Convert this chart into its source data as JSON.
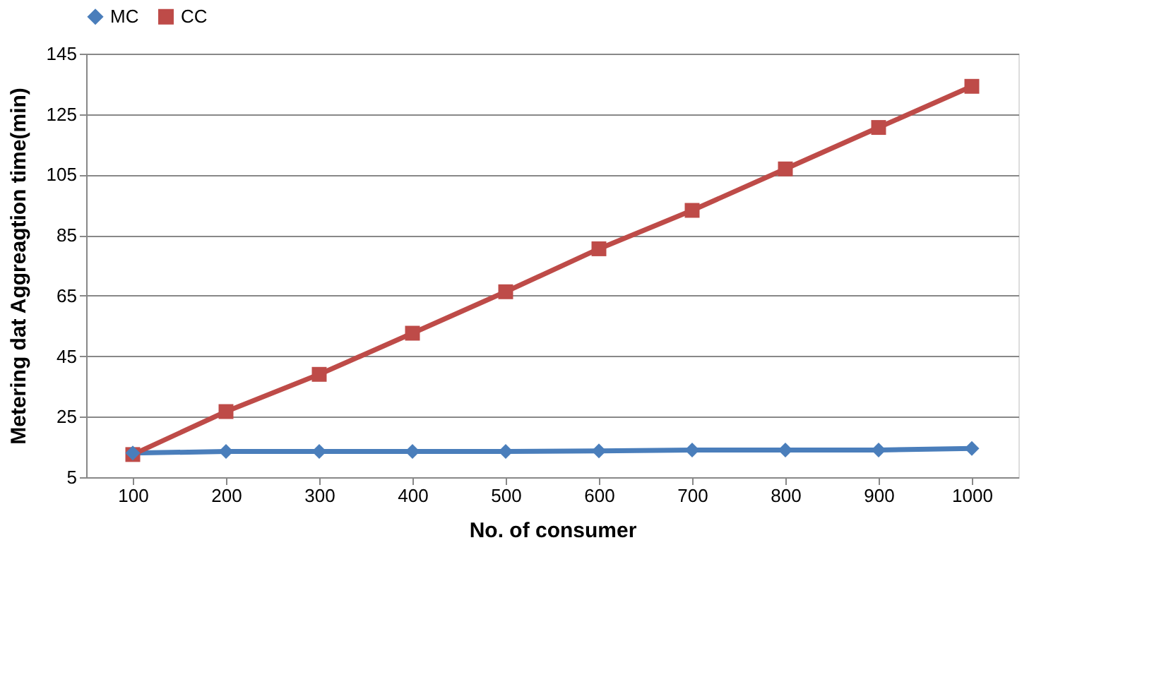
{
  "chart_data": {
    "type": "line",
    "xlabel": "No. of consumer",
    "ylabel": "Metering dat Aggreagtion time(min)",
    "categories": [
      "100",
      "200",
      "300",
      "400",
      "500",
      "600",
      "700",
      "800",
      "900",
      "1000"
    ],
    "series": [
      {
        "name": "MC",
        "color": "#4a7ebb",
        "marker": "diamond",
        "values": [
          13,
          13.5,
          13.5,
          13.5,
          13.5,
          13.7,
          14,
          14,
          14,
          14.5
        ]
      },
      {
        "name": "CC",
        "color": "#be4b48",
        "marker": "square",
        "values": [
          12.5,
          26.7,
          39,
          52.6,
          66.3,
          80.5,
          93.2,
          106.9,
          120.6,
          134.2
        ]
      }
    ],
    "ylim": [
      5,
      145
    ],
    "yticks": [
      5,
      25,
      45,
      65,
      85,
      105,
      125,
      145
    ],
    "grid": "y",
    "legend": "top"
  }
}
